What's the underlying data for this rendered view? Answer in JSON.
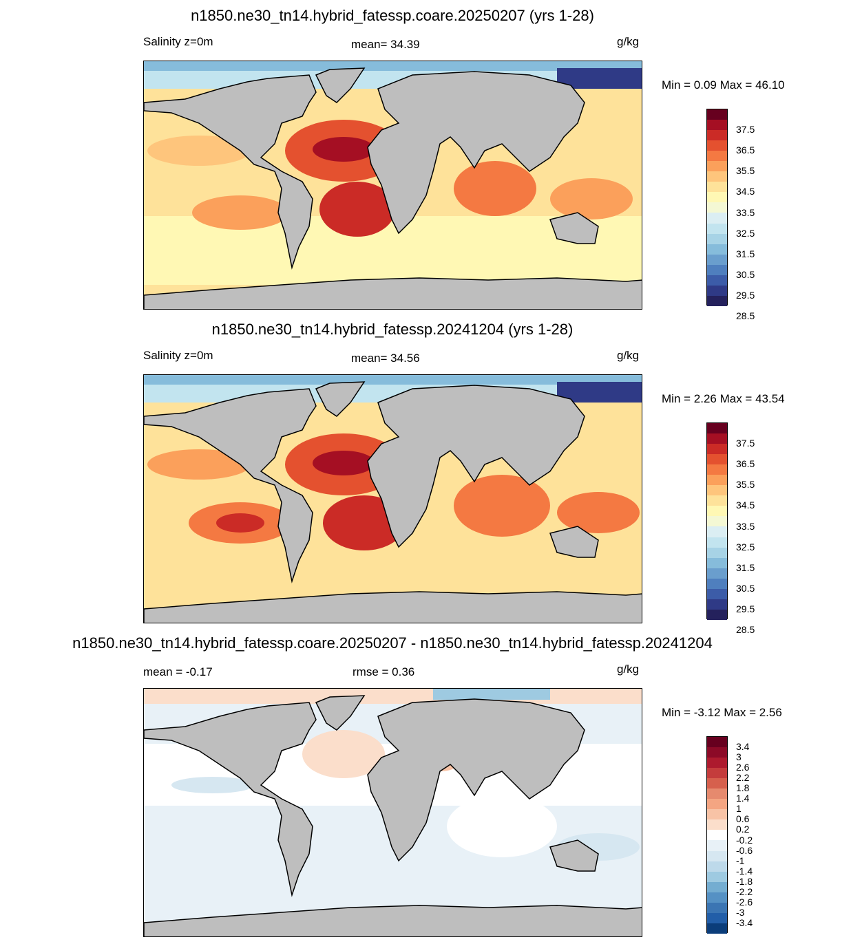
{
  "panels": [
    {
      "title": "n1850.ne30_tn14.hybrid_fatessp.coare.20250207 (yrs 1-28)",
      "left_label": "Salinity z=0m",
      "center_label": "mean=  34.39",
      "units": "g/kg",
      "minmax": "Min =    0.09 Max =   46.10"
    },
    {
      "title": "n1850.ne30_tn14.hybrid_fatessp.20241204 (yrs 1-28)",
      "left_label": "Salinity z=0m",
      "center_label": "mean=  34.56",
      "units": "g/kg",
      "minmax": "Min =    2.26 Max =   43.54"
    },
    {
      "title": "n1850.ne30_tn14.hybrid_fatessp.coare.20250207 - n1850.ne30_tn14.hybrid_fatessp.20241204",
      "left_label": "mean =   -0.17",
      "center_label": "rmse =    0.36",
      "units": "g/kg",
      "minmax": "Min =  -3.12 Max =    2.56"
    }
  ],
  "salinity_colorbar": {
    "labels": [
      "37.5",
      "36.5",
      "35.5",
      "34.5",
      "33.5",
      "32.5",
      "31.5",
      "30.5",
      "29.5",
      "28.5"
    ],
    "colors": [
      "#67001f",
      "#a50f23",
      "#cb2b26",
      "#e4512f",
      "#f47942",
      "#fba05b",
      "#fec57c",
      "#fee29a",
      "#fff8b4",
      "#f4f8d4",
      "#dbeef3",
      "#c2e4ef",
      "#a7d3e6",
      "#86bcdb",
      "#6a9ecd",
      "#4f7fbe",
      "#3c5ca8",
      "#2f3a86",
      "#24215c"
    ]
  },
  "diff_colorbar": {
    "labels": [
      "3.4",
      "3",
      "2.6",
      "2.2",
      "1.8",
      "1.4",
      "1",
      "0.6",
      "0.2",
      "-0.2",
      "-0.6",
      "-1",
      "-1.4",
      "-1.8",
      "-2.2",
      "-2.6",
      "-3",
      "-3.4"
    ],
    "colors": [
      "#67001f",
      "#8c0a27",
      "#ad1a2e",
      "#c43c3c",
      "#d6604d",
      "#e68a6e",
      "#f4a582",
      "#f8c3a6",
      "#fbdecb",
      "#ffffff",
      "#e8f1f7",
      "#d6e7f1",
      "#bdd9ea",
      "#9ecae1",
      "#74add1",
      "#5591c4",
      "#3b75b3",
      "#225ea8",
      "#0b3d7a"
    ]
  },
  "map_colors": {
    "land": "#bebebe",
    "coast": "#000000"
  }
}
